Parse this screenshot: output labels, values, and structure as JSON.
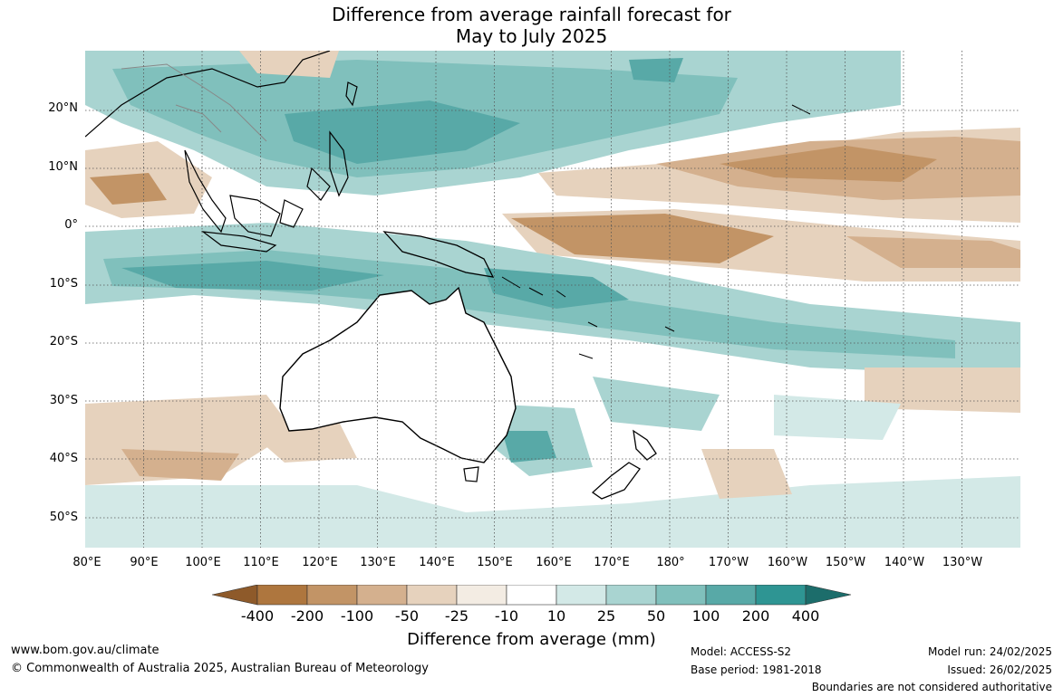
{
  "title": {
    "line1": "Difference from average rainfall forecast for",
    "line2": "May to July 2025"
  },
  "map": {
    "lat_labels": [
      "20°N",
      "10°N",
      "0°",
      "10°S",
      "20°S",
      "30°S",
      "40°S",
      "50°S"
    ],
    "lon_labels": [
      "80°E",
      "90°E",
      "100°E",
      "110°E",
      "120°E",
      "130°E",
      "140°E",
      "150°E",
      "160°E",
      "170°E",
      "180°",
      "170°W",
      "160°W",
      "150°W",
      "140°W",
      "130°W"
    ]
  },
  "colorbar": {
    "ticks": [
      "-400",
      "-200",
      "-100",
      "-50",
      "-25",
      "-10",
      "10",
      "25",
      "50",
      "100",
      "200",
      "400"
    ],
    "colors": {
      "lt_neg400": "#8e5a2a",
      "neg400_neg200": "#ae763e",
      "neg200_neg100": "#c29466",
      "neg100_neg50": "#d4b08e",
      "neg50_neg25": "#e6d2bd",
      "neg25_neg10": "#f3ece3",
      "neg10_10": "#ffffff",
      "p10_25": "#d3e9e7",
      "p25_50": "#a9d4d1",
      "p50_100": "#80c0bc",
      "p100_200": "#58a9a7",
      "p200_400": "#2e9593",
      "gt_400": "#1c6d6b"
    },
    "label": "Difference from average (mm)"
  },
  "footer": {
    "website": "www.bom.gov.au/climate",
    "copyright": "© Commonwealth of Australia 2025, Australian Bureau of Meteorology",
    "model": "Model: ACCESS-S2",
    "base_period": "Base period: 1981-2018",
    "model_run": "Model run: 24/02/2025",
    "issued": "Issued: 26/02/2025",
    "disclaimer": "Boundaries are not considered authoritative"
  }
}
